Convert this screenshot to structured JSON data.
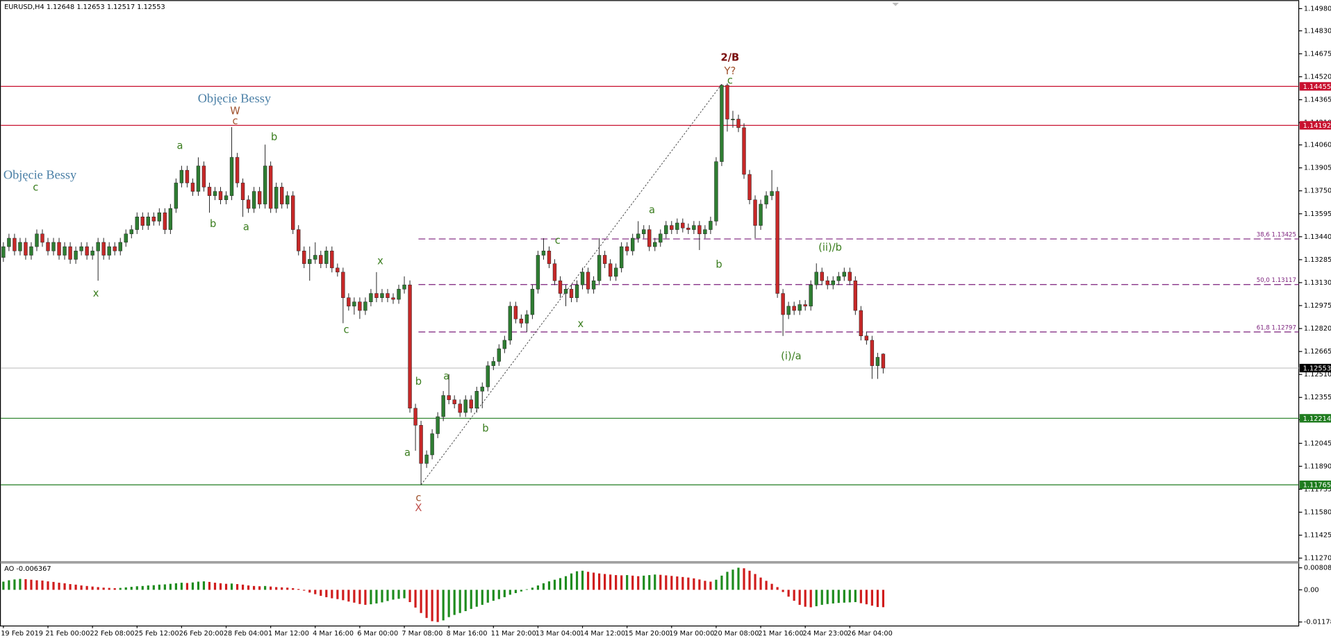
{
  "chart_data": {
    "type": "candlestick",
    "header": "EURUSD,H4  1.12648 1.12653 1.12517 1.12553",
    "categories": [
      "19 Feb 2019",
      null,
      null,
      null,
      null,
      null,
      null,
      null,
      "21 Feb 00:00",
      null,
      null,
      null,
      null,
      null,
      null,
      null,
      "22 Feb 08:00",
      null,
      null,
      null,
      null,
      null,
      null,
      null,
      "25 Feb 12:00",
      null,
      null,
      null,
      null,
      null,
      null,
      null,
      "26 Feb 20:00",
      null,
      null,
      null,
      null,
      null,
      null,
      null,
      "28 Feb 04:00",
      null,
      null,
      null,
      null,
      null,
      null,
      null,
      "1 Mar 12:00",
      null,
      null,
      null,
      null,
      null,
      null,
      null,
      "4 Mar 16:00",
      null,
      null,
      null,
      null,
      null,
      null,
      null,
      "6 Mar 00:00",
      null,
      null,
      null,
      null,
      null,
      null,
      null,
      "7 Mar 08:00",
      null,
      null,
      null,
      null,
      null,
      null,
      null,
      "8 Mar 16:00",
      null,
      null,
      null,
      null,
      null,
      null,
      null,
      "11 Mar 20:00",
      null,
      null,
      null,
      null,
      null,
      null,
      null,
      "13 Mar 04:00",
      null,
      null,
      null,
      null,
      null,
      null,
      null,
      "14 Mar 12:00",
      null,
      null,
      null,
      null,
      null,
      null,
      null,
      "15 Mar 20:00",
      null,
      null,
      null,
      null,
      null,
      null,
      null,
      "19 Mar 00:00",
      null,
      null,
      null,
      null,
      null,
      null,
      null,
      "20 Mar 08:00",
      null,
      null,
      null,
      null,
      null,
      null,
      null,
      "21 Mar 16:00",
      null,
      null,
      null,
      null,
      null,
      null,
      null,
      "24 Mar 23:00",
      null,
      null,
      null,
      null,
      null,
      null,
      null,
      "26 Mar 04:00",
      null,
      null,
      null,
      null,
      null,
      null
    ],
    "open": [
      1.133,
      1.13373,
      1.1343,
      1.13344,
      1.13402,
      1.13315,
      1.13373,
      1.13459,
      1.13402,
      1.13344,
      1.13402,
      1.13315,
      1.13373,
      1.13287,
      1.13344,
      1.13373,
      1.13315,
      1.13344,
      1.13402,
      1.13315,
      1.13373,
      1.13344,
      1.13402,
      1.13459,
      1.13488,
      1.13574,
      1.13516,
      1.13574,
      1.13545,
      1.13602,
      1.13488,
      1.13631,
      1.13803,
      1.13889,
      1.13803,
      1.13746,
      1.13918,
      1.13775,
      1.13717,
      1.13746,
      1.13689,
      1.13717,
      1.13976,
      1.13803,
      1.13689,
      1.13631,
      1.13746,
      1.1366,
      1.13918,
      1.13631,
      1.13775,
      1.1366,
      1.13717,
      1.13488,
      1.13344,
      1.13258,
      1.13287,
      1.13315,
      1.13258,
      1.13344,
      1.13229,
      1.13201,
      1.13028,
      1.12971,
      1.13,
      1.12942,
      1.13,
      1.13057,
      1.13028,
      1.13057,
      1.13028,
      1.13017,
      1.13086,
      1.13115,
      1.12282,
      1.12167,
      1.11909,
      1.11967,
      1.1211,
      1.12225,
      1.12368,
      1.12339,
      1.12311,
      1.12253,
      1.12339,
      1.12282,
      1.12397,
      1.12426,
      1.12569,
      1.12598,
      1.12684,
      1.12741,
      1.12971,
      1.12885,
      1.12856,
      1.12914,
      1.13086,
      1.13315,
      1.13344,
      1.13258,
      1.13143,
      1.13057,
      1.13086,
      1.13028,
      1.13115,
      1.13201,
      1.13086,
      1.13143,
      1.13315,
      1.13258,
      1.13172,
      1.13229,
      1.13373,
      1.13344,
      1.1343,
      1.13459,
      1.13488,
      1.13373,
      1.13402,
      1.13459,
      1.13516,
      1.13488,
      1.13533,
      1.13499,
      1.13488,
      1.13516,
      1.13459,
      1.13488,
      1.13545,
      1.13947,
      1.14463,
      1.14234,
      1.14234,
      1.14176,
      1.13861,
      1.13689,
      1.13516,
      1.1366,
      1.13717,
      1.13746,
      1.13057,
      1.12914,
      1.12971,
      1.12942,
      1.12982,
      1.12971,
      1.13115,
      1.13201,
      1.13143,
      1.13115,
      1.13143,
      1.13172,
      1.13201,
      1.13143,
      1.12942,
      1.1277,
      1.12741,
      1.12569,
      1.12648
    ],
    "high": [
      1.13403,
      1.1346,
      1.1346,
      1.13432,
      1.13432,
      1.13403,
      1.13489,
      1.13489,
      1.13432,
      1.13432,
      1.13432,
      1.13403,
      1.13403,
      1.13374,
      1.13403,
      1.13403,
      1.13374,
      1.13432,
      1.13432,
      1.13403,
      1.13403,
      1.13432,
      1.13489,
      1.13518,
      1.13604,
      1.13604,
      1.13604,
      1.13604,
      1.13632,
      1.13632,
      1.13661,
      1.13833,
      1.13919,
      1.13919,
      1.13833,
      1.13976,
      1.13948,
      1.13805,
      1.13776,
      1.13776,
      1.13747,
      1.1418,
      1.14006,
      1.13833,
      1.13719,
      1.13776,
      1.13776,
      1.14062,
      1.13948,
      1.13805,
      1.13805,
      1.13747,
      1.13747,
      1.13518,
      1.13374,
      1.13374,
      1.13402,
      1.13345,
      1.13374,
      1.13374,
      1.13259,
      1.13231,
      1.13058,
      1.1303,
      1.1303,
      1.1303,
      1.13087,
      1.13201,
      1.13087,
      1.13087,
      1.13058,
      1.13116,
      1.13172,
      1.13145,
      1.12312,
      1.12197,
      1.11997,
      1.1214,
      1.12255,
      1.12398,
      1.12512,
      1.12369,
      1.12341,
      1.12369,
      1.12369,
      1.12427,
      1.12456,
      1.12599,
      1.12628,
      1.12714,
      1.12771,
      1.13001,
      1.13001,
      1.12915,
      1.12944,
      1.13116,
      1.13345,
      1.1343,
      1.13374,
      1.13288,
      1.13173,
      1.13116,
      1.13116,
      1.13145,
      1.13231,
      1.13231,
      1.13173,
      1.1343,
      1.13345,
      1.13288,
      1.13259,
      1.13403,
      1.13403,
      1.1346,
      1.13545,
      1.13518,
      1.13518,
      1.13432,
      1.13489,
      1.13546,
      1.13546,
      1.13563,
      1.13563,
      1.13529,
      1.13546,
      1.13546,
      1.13518,
      1.13575,
      1.13977,
      1.1447,
      1.14475,
      1.1429,
      1.14264,
      1.14206,
      1.13891,
      1.13719,
      1.1369,
      1.13747,
      1.1389,
      1.13776,
      1.13087,
      1.13001,
      1.13001,
      1.13012,
      1.13012,
      1.13145,
      1.1326,
      1.13231,
      1.13173,
      1.13173,
      1.13202,
      1.13231,
      1.13231,
      1.13173,
      1.12972,
      1.128,
      1.12771,
      1.12656,
      1.12653
    ],
    "low": [
      1.1327,
      1.13343,
      1.13314,
      1.13314,
      1.13285,
      1.13285,
      1.13343,
      1.13372,
      1.13314,
      1.13314,
      1.13285,
      1.13285,
      1.13257,
      1.13257,
      1.13314,
      1.13285,
      1.13285,
      1.13143,
      1.13285,
      1.13285,
      1.13314,
      1.13314,
      1.13372,
      1.13429,
      1.13458,
      1.13486,
      1.13486,
      1.13515,
      1.13515,
      1.13458,
      1.13458,
      1.13601,
      1.13773,
      1.13773,
      1.13716,
      1.13716,
      1.13745,
      1.13602,
      1.13687,
      1.13659,
      1.13659,
      1.13687,
      1.13773,
      1.13574,
      1.13601,
      1.13601,
      1.1363,
      1.1363,
      1.13601,
      1.13601,
      1.1363,
      1.1363,
      1.13458,
      1.13314,
      1.13228,
      1.13143,
      1.13257,
      1.13228,
      1.13228,
      1.13199,
      1.13171,
      1.12856,
      1.12941,
      1.12914,
      1.12885,
      1.12912,
      1.1297,
      1.12998,
      1.12998,
      1.12998,
      1.12987,
      1.12987,
      1.13056,
      1.12252,
      1.11995,
      1.11765,
      1.11879,
      1.11937,
      1.1208,
      1.12195,
      1.12309,
      1.12281,
      1.12223,
      1.12223,
      1.12252,
      1.12252,
      1.12282,
      1.12396,
      1.12539,
      1.12568,
      1.12654,
      1.12711,
      1.12855,
      1.12826,
      1.12797,
      1.12884,
      1.13056,
      1.13285,
      1.13228,
      1.13113,
      1.13027,
      1.12971,
      1.12998,
      1.12998,
      1.13085,
      1.13056,
      1.13056,
      1.13113,
      1.13228,
      1.13142,
      1.13142,
      1.13199,
      1.13314,
      1.13314,
      1.134,
      1.13429,
      1.13343,
      1.13343,
      1.13372,
      1.13429,
      1.13458,
      1.13458,
      1.13469,
      1.13458,
      1.13458,
      1.1335,
      1.13429,
      1.13458,
      1.13515,
      1.13917,
      1.1415,
      1.14176,
      1.14146,
      1.13831,
      1.13659,
      1.1343,
      1.13486,
      1.1363,
      1.13687,
      1.13027,
      1.1277,
      1.12884,
      1.12912,
      1.12912,
      1.12941,
      1.12941,
      1.13085,
      1.13113,
      1.13085,
      1.13085,
      1.13113,
      1.13142,
      1.13113,
      1.12912,
      1.1274,
      1.12711,
      1.1248,
      1.1248,
      1.12517
    ],
    "close": [
      1.13373,
      1.1343,
      1.13344,
      1.13402,
      1.13315,
      1.13373,
      1.13459,
      1.13402,
      1.13344,
      1.13402,
      1.13315,
      1.13373,
      1.13287,
      1.13344,
      1.13373,
      1.13315,
      1.13344,
      1.13402,
      1.13315,
      1.13373,
      1.13344,
      1.13402,
      1.13459,
      1.13488,
      1.13574,
      1.13516,
      1.13574,
      1.13545,
      1.13602,
      1.13488,
      1.13631,
      1.13803,
      1.13889,
      1.13803,
      1.13746,
      1.13918,
      1.13775,
      1.13717,
      1.13746,
      1.13689,
      1.13717,
      1.13976,
      1.13803,
      1.13689,
      1.13631,
      1.13746,
      1.1366,
      1.13918,
      1.13631,
      1.13775,
      1.1366,
      1.13717,
      1.13488,
      1.13344,
      1.13258,
      1.13287,
      1.13315,
      1.13258,
      1.13344,
      1.13229,
      1.13201,
      1.13028,
      1.12971,
      1.13,
      1.12942,
      1.13,
      1.13057,
      1.13028,
      1.13057,
      1.13028,
      1.13017,
      1.13086,
      1.13115,
      1.12282,
      1.12167,
      1.11909,
      1.11967,
      1.1211,
      1.12225,
      1.12368,
      1.12339,
      1.12311,
      1.12253,
      1.12339,
      1.12282,
      1.12397,
      1.12426,
      1.12569,
      1.12598,
      1.12684,
      1.12741,
      1.12971,
      1.12885,
      1.12856,
      1.12914,
      1.13086,
      1.13315,
      1.13344,
      1.13258,
      1.13143,
      1.13057,
      1.13086,
      1.13028,
      1.13115,
      1.13201,
      1.13086,
      1.13143,
      1.13315,
      1.13258,
      1.13172,
      1.13229,
      1.13373,
      1.13344,
      1.1343,
      1.13459,
      1.13488,
      1.13373,
      1.13402,
      1.13459,
      1.13516,
      1.13488,
      1.13533,
      1.13499,
      1.13488,
      1.13516,
      1.13459,
      1.13488,
      1.13545,
      1.13947,
      1.14463,
      1.14234,
      1.14234,
      1.14176,
      1.13861,
      1.13689,
      1.13516,
      1.1366,
      1.13717,
      1.13746,
      1.13057,
      1.12914,
      1.12971,
      1.12942,
      1.12982,
      1.12971,
      1.13115,
      1.13201,
      1.13143,
      1.13115,
      1.13143,
      1.13172,
      1.13201,
      1.13143,
      1.12942,
      1.1277,
      1.12741,
      1.12569,
      1.12626,
      1.12553
    ],
    "colors": {
      "up": "#2e7d32",
      "down": "#c62828"
    },
    "ylim": [
      1.1125,
      1.1502
    ],
    "yticks": [
      {
        "value": 1.1498,
        "label": "1.14980"
      },
      {
        "value": 1.1483,
        "label": "1.14830"
      },
      1.14675,
      {
        "value": 1.1452,
        "label": "1.14520"
      },
      1.14365,
      {
        "value": 1.1421,
        "label": "1.14210"
      },
      {
        "value": 1.1406,
        "label": "1.14060"
      },
      1.13905,
      {
        "value": 1.1375,
        "label": "1.13750"
      },
      1.13595,
      {
        "value": 1.1344,
        "label": "1.13440"
      },
      1.13285,
      {
        "value": 1.1313,
        "label": "1.13130"
      },
      1.12975,
      {
        "value": 1.1282,
        "label": "1.12820"
      },
      1.12665,
      {
        "value": 1.1251,
        "label": "1.12510"
      },
      1.12355,
      1.12205,
      1.12045,
      {
        "value": 1.1189,
        "label": "1.11890"
      },
      1.11735,
      {
        "value": 1.1158,
        "label": "1.11580"
      },
      1.11425,
      {
        "value": 1.1127,
        "label": "1.11270"
      }
    ],
    "grid": false,
    "levels": [
      {
        "value": 1.14455,
        "line_color": "#c8102e",
        "box_color": "#c8102e"
      },
      {
        "value": 1.14192,
        "line_color": "#c8102e",
        "box_color": "#c8102e"
      },
      {
        "value": 1.12553,
        "line_color": "#c8c8c8",
        "box_color": "#000000"
      },
      {
        "value": 1.12214,
        "line_color": "#1e7b1e",
        "box_color": "#1e7b1e"
      },
      {
        "value": 1.11765,
        "line_color": "#1e7b1e",
        "box_color": "#1e7b1e"
      }
    ],
    "fib": [
      {
        "label": "38,6  1.13425",
        "value": 1.13425
      },
      {
        "label": "50,0  1.13117",
        "value": 1.13117
      },
      {
        "label": "61,8  1.12797",
        "value": 1.12797
      }
    ],
    "fib_color": "#7b1f7b",
    "annotations": [
      {
        "text": "Objęcie Bessy",
        "color": "#4a7fa6"
      },
      {
        "text": "c",
        "color": "#3a7d1e"
      },
      {
        "text": "Objęcie Bessy",
        "color": "#4a7fa6"
      },
      {
        "text": "W",
        "color": "#a0522d"
      },
      {
        "text": "c",
        "color": "#a0522d"
      },
      {
        "text": "a",
        "color": "#3a7d1e"
      },
      {
        "text": "b",
        "color": "#3a7d1e"
      },
      {
        "text": "b",
        "color": "#3a7d1e"
      },
      {
        "text": "a",
        "color": "#3a7d1e"
      },
      {
        "text": "x",
        "color": "#3a7d1e"
      },
      {
        "text": "x",
        "color": "#3a7d1e"
      },
      {
        "text": "c",
        "color": "#3a7d1e"
      },
      {
        "text": "b",
        "color": "#3a7d1e"
      },
      {
        "text": "a",
        "color": "#3a7d1e"
      },
      {
        "text": "c",
        "color": "#a0522d"
      },
      {
        "text": "X",
        "color": "#c0504d"
      },
      {
        "text": "a",
        "color": "#3a7d1e"
      },
      {
        "text": "b",
        "color": "#3a7d1e"
      },
      {
        "text": "c",
        "color": "#3a7d1e"
      },
      {
        "text": "x",
        "color": "#3a7d1e"
      },
      {
        "text": "a",
        "color": "#3a7d1e"
      },
      {
        "text": "b",
        "color": "#3a7d1e"
      },
      {
        "text": "2/B",
        "color": "#7a0c0c"
      },
      {
        "text": "Y?",
        "color": "#a0522d"
      },
      {
        "text": "c",
        "color": "#3a7d1e"
      },
      {
        "text": "(ii)/b",
        "color": "#3a7d1e"
      },
      {
        "text": "(i)/a",
        "color": "#3a7d1e"
      }
    ],
    "indicator": {
      "type": "bar",
      "label": "AO -0.006367",
      "colors": {
        "up": "#1e8c1e",
        "down": "#d01c1c"
      },
      "ylim": [
        -0.0131,
        0.0096
      ],
      "yticks": [
        0.00808,
        {
          "value": 0,
          "label": "0.00"
        },
        -0.01178
      ],
      "values": [
        0.003,
        0.0035,
        0.0038,
        0.004,
        0.0039,
        0.0037,
        0.0035,
        0.0034,
        0.0031,
        0.0029,
        0.0026,
        0.0024,
        0.0021,
        0.0019,
        0.0016,
        0.0014,
        0.0012,
        0.001,
        0.0008,
        0.0007,
        0.0006,
        0.0007,
        0.0009,
        0.0011,
        0.0013,
        0.0014,
        0.0016,
        0.0017,
        0.0019,
        0.002,
        0.0022,
        0.0024,
        0.0026,
        0.0025,
        0.0027,
        0.003,
        0.0031,
        0.0029,
        0.0026,
        0.0024,
        0.0022,
        0.0023,
        0.0021,
        0.0019,
        0.0016,
        0.0014,
        0.0013,
        0.0014,
        0.0012,
        0.001,
        0.0009,
        0.0008,
        0.0006,
        0.0003,
        -0.0003,
        -0.001,
        -0.0016,
        -0.0022,
        -0.0027,
        -0.0031,
        -0.0034,
        -0.0038,
        -0.0043,
        -0.0047,
        -0.0052,
        -0.0055,
        -0.0053,
        -0.005,
        -0.0046,
        -0.0041,
        -0.0036,
        -0.0033,
        -0.0031,
        -0.0045,
        -0.0065,
        -0.0085,
        -0.0103,
        -0.0115,
        -0.0118,
        -0.0112,
        -0.01,
        -0.0092,
        -0.0085,
        -0.0078,
        -0.007,
        -0.0062,
        -0.0055,
        -0.0047,
        -0.004,
        -0.0034,
        -0.0027,
        -0.0018,
        -0.0012,
        -0.0006,
        0.0002,
        0.0008,
        0.0016,
        0.0024,
        0.0031,
        0.0037,
        0.0043,
        0.005,
        0.006,
        0.0068,
        0.007,
        0.0066,
        0.0063,
        0.006,
        0.0058,
        0.0056,
        0.0054,
        0.0053,
        0.0054,
        0.0052,
        0.005,
        0.0052,
        0.0054,
        0.0056,
        0.0055,
        0.0053,
        0.0051,
        0.0049,
        0.0047,
        0.0045,
        0.0042,
        0.0038,
        0.0033,
        0.003,
        0.0037,
        0.0052,
        0.0066,
        0.0074,
        0.0081,
        0.0079,
        0.007,
        0.0058,
        0.0045,
        0.0033,
        0.0022,
        0.001,
        -0.0008,
        -0.0025,
        -0.004,
        -0.0055,
        -0.0062,
        -0.0064,
        -0.006,
        -0.0055,
        -0.0052,
        -0.005,
        -0.0048,
        -0.0047,
        -0.0046,
        -0.0045,
        -0.0049,
        -0.0053,
        -0.0058,
        -0.0063,
        -0.006367
      ]
    }
  }
}
